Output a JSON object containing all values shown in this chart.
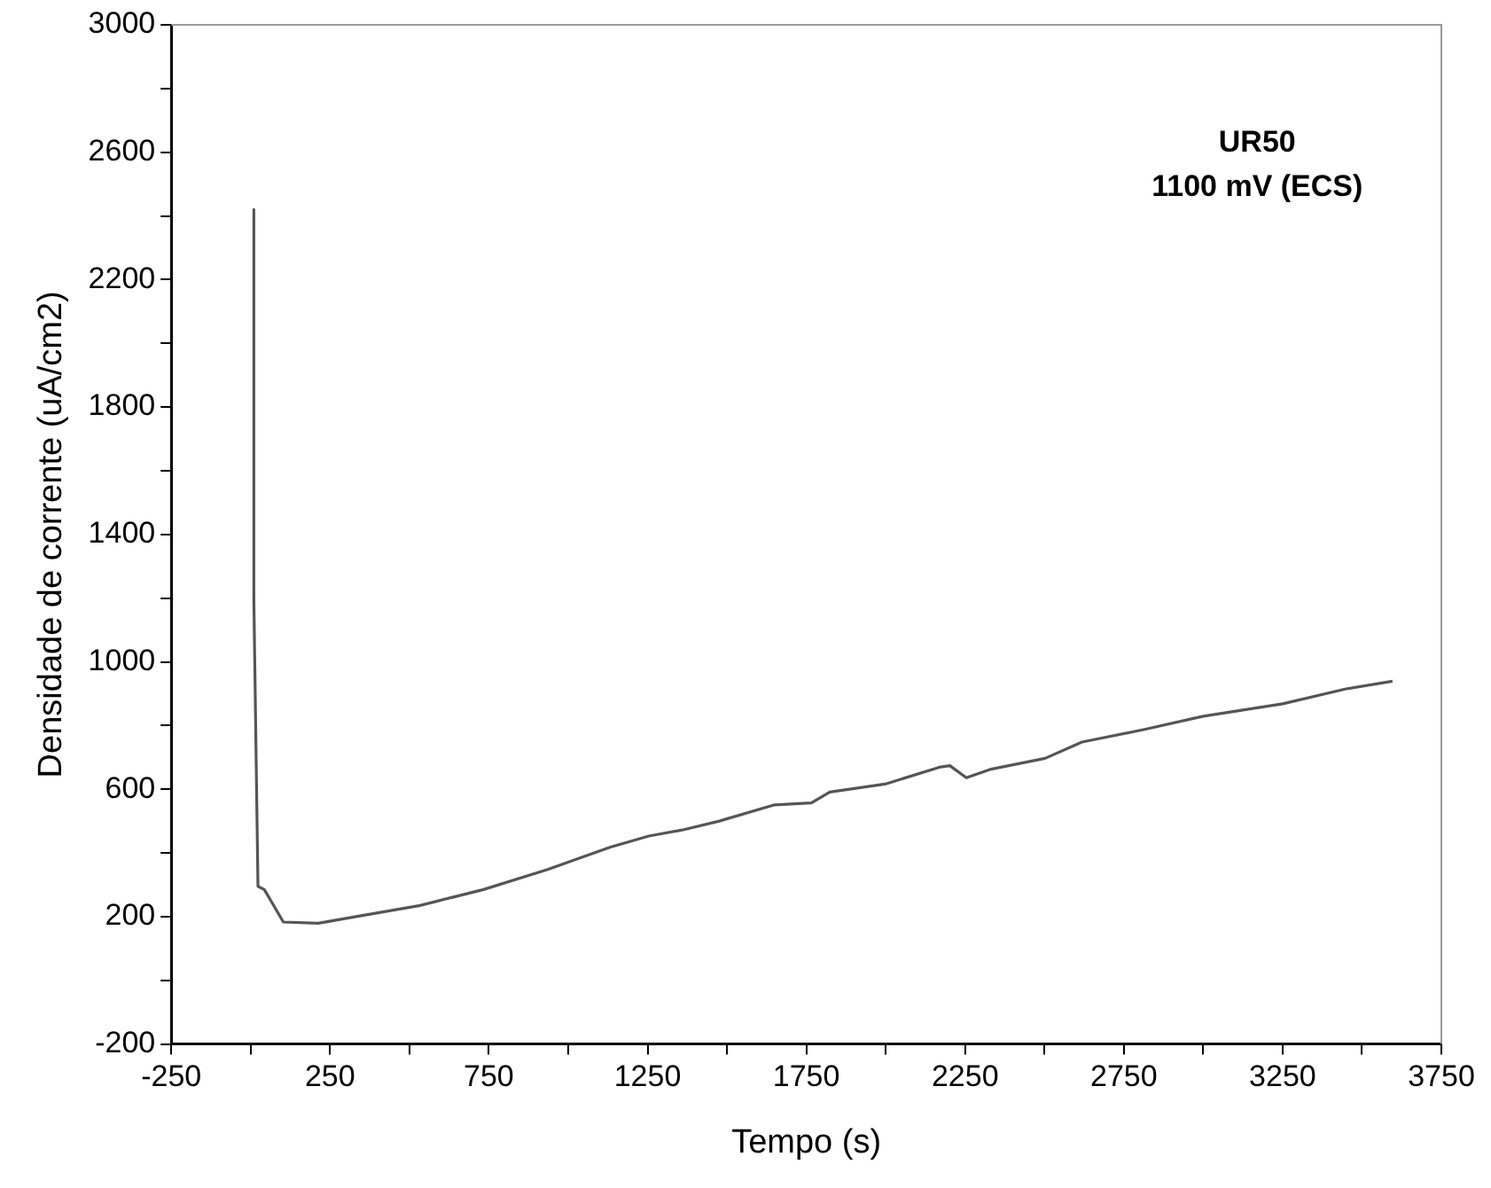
{
  "chart_data": {
    "type": "line",
    "xlabel": "Tempo (s)",
    "ylabel": "Densidade de corrente (uA/cm2)",
    "annotations": [
      "UR50",
      "1100 mV (ECS)"
    ],
    "series": [
      {
        "color": "#555555",
        "x": [
          10,
          10,
          23,
          43,
          103,
          213,
          332,
          533,
          733,
          933,
          1133,
          1254,
          1359,
          1476,
          1650,
          1766,
          1824,
          1998,
          2173,
          2202,
          2254,
          2328,
          2502,
          2618,
          2812,
          3000,
          3250,
          3450,
          3596
        ],
        "values": [
          2420,
          1200,
          295,
          285,
          183,
          179,
          200,
          235,
          285,
          347,
          418,
          453,
          472,
          500,
          551,
          557,
          591,
          616,
          670,
          674,
          636,
          662,
          697,
          748,
          787,
          829,
          868,
          915,
          939
        ]
      }
    ],
    "xlim": [
      -250,
      3750
    ],
    "xticks": [
      -250,
      {
        "value": 0,
        "label": null
      },
      250,
      {
        "value": 500,
        "label": null
      },
      750,
      {
        "value": 1000,
        "label": null
      },
      1250,
      {
        "value": 1500,
        "label": null
      },
      1750,
      {
        "value": 2000,
        "label": null
      },
      2250,
      {
        "value": 2500,
        "label": null
      },
      2750,
      {
        "value": 3000,
        "label": null
      },
      3250,
      {
        "value": 3500,
        "label": null
      },
      3750
    ],
    "ylim": [
      -200,
      3000
    ],
    "yticks": [
      -200,
      {
        "value": 0,
        "label": null
      },
      200,
      {
        "value": 400,
        "label": null
      },
      600,
      {
        "value": 800,
        "label": null
      },
      1000,
      {
        "value": 1200,
        "label": null
      },
      1400,
      {
        "value": 1600,
        "label": null
      },
      1800,
      {
        "value": 2000,
        "label": null
      },
      2200,
      {
        "value": 2400,
        "label": null
      },
      2600,
      {
        "value": 2800,
        "label": null
      },
      3000
    ],
    "grid": false,
    "legend": false,
    "marker": "none",
    "line_style": "solid"
  }
}
